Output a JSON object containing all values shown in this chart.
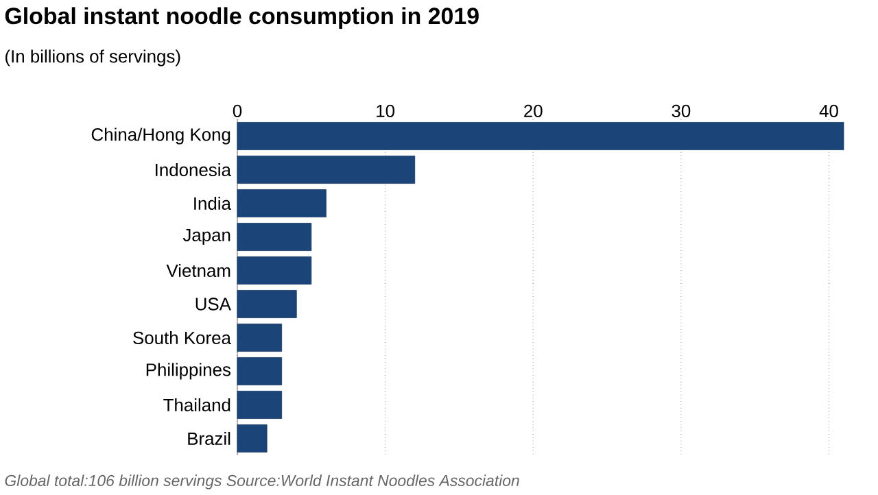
{
  "chart_data": {
    "type": "bar",
    "orientation": "horizontal",
    "title": "Global instant noodle consumption in 2019",
    "subtitle": "(In billions of servings)",
    "categories": [
      "China/Hong Kong",
      "Indonesia",
      "India",
      "Japan",
      "Vietnam",
      "USA",
      "South Korea",
      "Philippines",
      "Thailand",
      "Brazil"
    ],
    "values": [
      41,
      12,
      6,
      5,
      5,
      4,
      3,
      3,
      3,
      2
    ],
    "color": "#1b4478",
    "xlim": [
      0,
      41
    ],
    "xticks": [
      0,
      10,
      20,
      30,
      40
    ],
    "grid": "x",
    "annotations": [
      "Global total:106 billion servings Source:World Instant Noodles Association"
    ]
  }
}
